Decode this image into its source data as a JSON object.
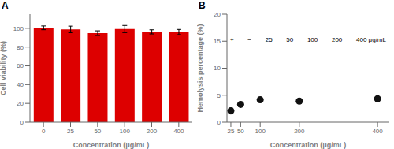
{
  "chart_data": [
    {
      "type": "bar",
      "title": "A",
      "categories": [
        "0",
        "25",
        "50",
        "100",
        "200",
        "400"
      ],
      "values": [
        100.5,
        98.8,
        94.8,
        99.2,
        96.2,
        96.0
      ],
      "errors": [
        2.0,
        3.5,
        2.5,
        3.8,
        2.2,
        2.8
      ],
      "color": "#dd0000",
      "xlabel": "Concentration (μg/mL)",
      "ylabel": "Cell viability (%)",
      "ylim": [
        0,
        115
      ],
      "yticks": [
        0,
        20,
        40,
        60,
        80,
        100
      ],
      "grid": false
    },
    {
      "type": "scatter",
      "title": "B",
      "x": [
        25,
        50,
        100,
        200,
        400
      ],
      "values": [
        2.1,
        3.3,
        4.15,
        3.9,
        4.35
      ],
      "errors": [
        0.5,
        0.35,
        0.25,
        0.35,
        0.25
      ],
      "color": "#111111",
      "xlabel": "Concentration (μg/mL)",
      "ylabel": "Hemolysis percentage (%)",
      "xlim": [
        15,
        430
      ],
      "xticks": [
        25,
        50,
        100,
        200,
        400
      ],
      "ylim": [
        0,
        20
      ],
      "yticks": [
        0,
        5,
        10,
        15,
        20
      ],
      "annotations": [
        "+",
        "−",
        "25",
        "50",
        "100",
        "200",
        "400 μg/mL"
      ],
      "grid": false
    }
  ]
}
